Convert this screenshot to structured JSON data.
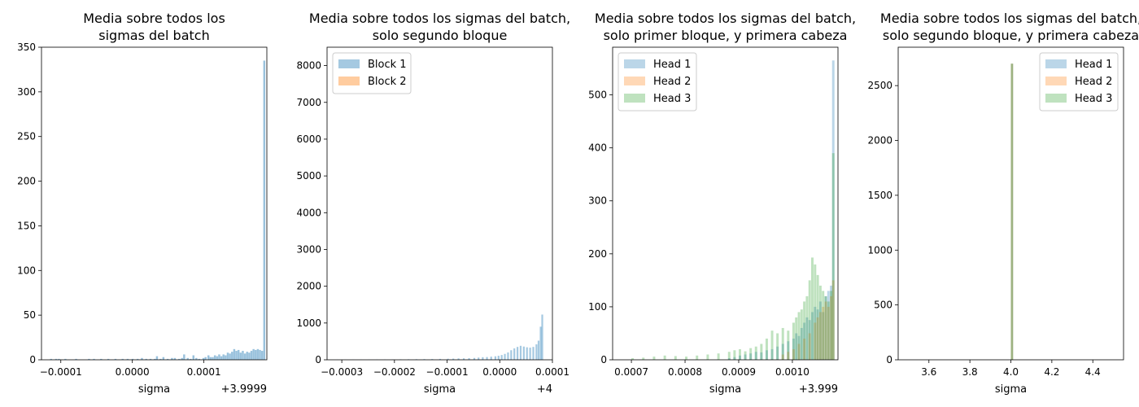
{
  "chart_data": [
    {
      "type": "bar",
      "title_lines": [
        "Media sobre todos los",
        "sigmas del batch"
      ],
      "xlabel": "sigma",
      "ylabel": "",
      "x_offset_text": "+3.9999",
      "xlim": [
        -0.000127,
        0.000188
      ],
      "ylim": [
        0,
        350
      ],
      "xticks": [
        -0.0001,
        0.0,
        0.0001
      ],
      "xtick_labels": [
        "−0.0001",
        "0.0000",
        "0.0001"
      ],
      "yticks": [
        0,
        50,
        100,
        150,
        200,
        250,
        300,
        350
      ],
      "ytick_labels": [
        "0",
        "50",
        "100",
        "150",
        "200",
        "250",
        "300",
        "350"
      ],
      "legend": null,
      "series": [
        {
          "color": "#1f77b4",
          "opacity": 0.45,
          "bins": [
            [
              -0.000115,
              1
            ],
            [
              -0.000108,
              1
            ],
            [
              -0.000104,
              1
            ],
            [
              -9.5e-05,
              1
            ],
            [
              -8e-05,
              1
            ],
            [
              -6.2e-05,
              1
            ],
            [
              -5.5e-05,
              1
            ],
            [
              -4.5e-05,
              1
            ],
            [
              -3.5e-05,
              1
            ],
            [
              -2.5e-05,
              1
            ],
            [
              -1.5e-05,
              1
            ],
            [
              -8e-06,
              1
            ],
            [
              -1e-06,
              1
            ],
            [
              6e-06,
              1
            ],
            [
              1.2e-05,
              2
            ],
            [
              1.8e-05,
              1
            ],
            [
              2.4e-05,
              1
            ],
            [
              3e-05,
              1
            ],
            [
              3.3e-05,
              4
            ],
            [
              3.8e-05,
              1
            ],
            [
              4.2e-05,
              3
            ],
            [
              4.8e-05,
              1
            ],
            [
              5.4e-05,
              2
            ],
            [
              5.8e-05,
              2
            ],
            [
              6.4e-05,
              1
            ],
            [
              6.8e-05,
              2
            ],
            [
              7.1e-05,
              6
            ],
            [
              7.6e-05,
              2
            ],
            [
              8e-05,
              1
            ],
            [
              8.4e-05,
              5
            ],
            [
              8.8e-05,
              2
            ],
            [
              9.2e-05,
              1
            ],
            [
              9.8e-05,
              2
            ],
            [
              0.000101,
              3
            ],
            [
              0.000105,
              5
            ],
            [
              0.000108,
              3
            ],
            [
              0.000111,
              3
            ],
            [
              0.000114,
              5
            ],
            [
              0.000117,
              4
            ],
            [
              0.00012,
              6
            ],
            [
              0.000123,
              4
            ],
            [
              0.000126,
              6
            ],
            [
              0.000129,
              5
            ],
            [
              0.000132,
              8
            ],
            [
              0.000135,
              7
            ],
            [
              0.000138,
              9
            ],
            [
              0.000141,
              12
            ],
            [
              0.000144,
              10
            ],
            [
              0.000147,
              11
            ],
            [
              0.00015,
              8
            ],
            [
              0.000153,
              10
            ],
            [
              0.000156,
              7
            ],
            [
              0.000159,
              9
            ],
            [
              0.000162,
              8
            ],
            [
              0.000165,
              10
            ],
            [
              0.000168,
              12
            ],
            [
              0.000171,
              11
            ],
            [
              0.000174,
              12
            ],
            [
              0.000177,
              11
            ],
            [
              0.00018,
              10
            ],
            [
              0.000183,
              335
            ]
          ],
          "bin_width": 2.8e-06
        }
      ]
    },
    {
      "type": "bar",
      "title_lines": [
        "Media sobre todos los sigmas del batch,",
        "solo segundo bloque"
      ],
      "xlabel": "sigma",
      "ylabel": "",
      "x_offset_text": "+4",
      "xlim": [
        -0.000328,
        0.0001
      ],
      "ylim": [
        0,
        8500
      ],
      "xticks": [
        -0.0003,
        -0.0002,
        -0.0001,
        0.0,
        0.0001
      ],
      "xtick_labels": [
        "−0.0003",
        "−0.0002",
        "−0.0001",
        "0.0000",
        "0.0001"
      ],
      "yticks": [
        0,
        1000,
        2000,
        3000,
        4000,
        5000,
        6000,
        7000,
        8000
      ],
      "ytick_labels": [
        "0",
        "1000",
        "2000",
        "3000",
        "4000",
        "5000",
        "6000",
        "7000",
        "8000"
      ],
      "legend": {
        "placement": "upper left",
        "entries": [
          "Block 1",
          "Block 2"
        ],
        "colors": [
          "#1f77b4",
          "#ff7f0e"
        ],
        "opacities": [
          0.4,
          0.4
        ]
      },
      "series": [
        {
          "name": "Block 1",
          "color": "#1f77b4",
          "opacity": 0.4,
          "bins": [
            [
              -0.00031,
              4
            ],
            [
              -0.000295,
              3
            ],
            [
              -0.00028,
              4
            ],
            [
              -0.000265,
              5
            ],
            [
              -0.00025,
              6
            ],
            [
              -0.000235,
              7
            ],
            [
              -0.00022,
              8
            ],
            [
              -0.000205,
              10
            ],
            [
              -0.00019,
              12
            ],
            [
              -0.000175,
              14
            ],
            [
              -0.00016,
              16
            ],
            [
              -0.000145,
              18
            ],
            [
              -0.00013,
              20
            ],
            [
              -0.000115,
              24
            ],
            [
              -0.0001,
              28
            ],
            [
              -9e-05,
              32
            ],
            [
              -8e-05,
              38
            ],
            [
              -7e-05,
              40
            ],
            [
              -6e-05,
              45
            ],
            [
              -5e-05,
              50
            ],
            [
              -4.2e-05,
              60
            ],
            [
              -3.4e-05,
              70
            ],
            [
              -2.6e-05,
              75
            ],
            [
              -1.8e-05,
              85
            ],
            [
              -1e-05,
              95
            ],
            [
              -4e-06,
              110
            ],
            [
              2e-06,
              130
            ],
            [
              8e-06,
              160
            ],
            [
              1.4e-05,
              200
            ],
            [
              2e-05,
              260
            ],
            [
              2.6e-05,
              310
            ],
            [
              3.2e-05,
              350
            ],
            [
              3.8e-05,
              380
            ],
            [
              4.4e-05,
              360
            ],
            [
              5e-05,
              340
            ],
            [
              5.6e-05,
              330
            ],
            [
              6.2e-05,
              350
            ],
            [
              6.8e-05,
              420
            ],
            [
              7.2e-05,
              520
            ],
            [
              7.6e-05,
              900
            ],
            [
              7.9e-05,
              1230
            ]
          ],
          "bin_width": 3.4e-06
        },
        {
          "name": "Block 2",
          "color": "#ff7f0e",
          "opacity": 0.4,
          "bins": []
        }
      ]
    },
    {
      "type": "bar",
      "title_lines": [
        "Media sobre todos los sigmas del batch,",
        "solo primer bloque, y primera cabeza"
      ],
      "xlabel": "sigma",
      "ylabel": "",
      "x_offset_text": "+3.999",
      "xlim": [
        0.000665,
        0.001085
      ],
      "ylim": [
        0,
        590
      ],
      "xticks": [
        0.0007,
        0.0008,
        0.0009,
        0.001
      ],
      "xtick_labels": [
        "0.0007",
        "0.0008",
        "0.0009",
        "0.0010"
      ],
      "yticks": [
        0,
        100,
        200,
        300,
        400,
        500
      ],
      "ytick_labels": [
        "0",
        "100",
        "200",
        "300",
        "400",
        "500"
      ],
      "legend": {
        "placement": "upper left",
        "entries": [
          "Head 1",
          "Head 2",
          "Head 3"
        ],
        "colors": [
          "#1f77b4",
          "#ff7f0e",
          "#2ca02c"
        ],
        "opacities": [
          0.3,
          0.3,
          0.3
        ]
      },
      "series": [
        {
          "name": "Head 1",
          "color": "#1f77b4",
          "opacity": 0.3,
          "bins": [
            [
              0.00088,
              3
            ],
            [
              0.00089,
              5
            ],
            [
              0.0009,
              8
            ],
            [
              0.00091,
              10
            ],
            [
              0.00092,
              12
            ],
            [
              0.00093,
              15
            ],
            [
              0.00094,
              14
            ],
            [
              0.00095,
              18
            ],
            [
              0.00096,
              20
            ],
            [
              0.00097,
              25
            ],
            [
              0.00098,
              30
            ],
            [
              0.00099,
              35
            ],
            [
              0.001,
              40
            ],
            [
              0.001005,
              50
            ],
            [
              0.00101,
              45
            ],
            [
              0.001015,
              60
            ],
            [
              0.00102,
              70
            ],
            [
              0.001025,
              80
            ],
            [
              0.00103,
              75
            ],
            [
              0.001035,
              90
            ],
            [
              0.00104,
              100
            ],
            [
              0.001045,
              95
            ],
            [
              0.00105,
              110
            ],
            [
              0.001055,
              90
            ],
            [
              0.00106,
              120
            ],
            [
              0.001065,
              130
            ],
            [
              0.00107,
              140
            ],
            [
              0.001074,
              565
            ]
          ],
          "bin_width": 4.5e-06
        },
        {
          "name": "Head 2",
          "color": "#ff7f0e",
          "opacity": 0.3,
          "bins": [
            [
              0.00098,
              10
            ],
            [
              0.00099,
              15
            ],
            [
              0.001,
              20
            ],
            [
              0.00101,
              30
            ],
            [
              0.00102,
              40
            ],
            [
              0.00103,
              50
            ],
            [
              0.00104,
              70
            ],
            [
              0.001045,
              80
            ],
            [
              0.00105,
              90
            ],
            [
              0.001055,
              100
            ],
            [
              0.00106,
              110
            ],
            [
              0.001065,
              100
            ],
            [
              0.00107,
              120
            ],
            [
              0.001074,
              150
            ]
          ],
          "bin_width": 4.5e-06
        },
        {
          "name": "Head 3",
          "color": "#2ca02c",
          "opacity": 0.3,
          "bins": [
            [
              0.0007,
              3
            ],
            [
              0.00072,
              4
            ],
            [
              0.00074,
              6
            ],
            [
              0.00076,
              8
            ],
            [
              0.00078,
              7
            ],
            [
              0.0008,
              6
            ],
            [
              0.00082,
              8
            ],
            [
              0.00084,
              10
            ],
            [
              0.00086,
              12
            ],
            [
              0.00088,
              15
            ],
            [
              0.00089,
              18
            ],
            [
              0.0009,
              20
            ],
            [
              0.00091,
              16
            ],
            [
              0.00092,
              22
            ],
            [
              0.00093,
              25
            ],
            [
              0.00094,
              30
            ],
            [
              0.00095,
              40
            ],
            [
              0.00096,
              55
            ],
            [
              0.00097,
              50
            ],
            [
              0.00098,
              60
            ],
            [
              0.00099,
              55
            ],
            [
              0.001,
              70
            ],
            [
              0.001005,
              80
            ],
            [
              0.00101,
              90
            ],
            [
              0.001015,
              95
            ],
            [
              0.00102,
              110
            ],
            [
              0.001025,
              120
            ],
            [
              0.00103,
              150
            ],
            [
              0.001035,
              193
            ],
            [
              0.00104,
              180
            ],
            [
              0.001045,
              160
            ],
            [
              0.00105,
              140
            ],
            [
              0.001055,
              130
            ],
            [
              0.00106,
              120
            ],
            [
              0.001065,
              110
            ],
            [
              0.00107,
              130
            ],
            [
              0.001074,
              390
            ]
          ],
          "bin_width": 4.5e-06
        }
      ]
    },
    {
      "type": "bar",
      "title_lines": [
        "Media sobre todos los sigmas del batch,",
        "solo segundo bloque, y primera cabeza"
      ],
      "xlabel": "sigma",
      "ylabel": "",
      "x_offset_text": "",
      "xlim": [
        3.45,
        4.55
      ],
      "ylim": [
        0,
        2850
      ],
      "xticks": [
        3.6,
        3.8,
        4.0,
        4.2,
        4.4
      ],
      "xtick_labels": [
        "3.6",
        "3.8",
        "4.0",
        "4.2",
        "4.4"
      ],
      "yticks": [
        0,
        500,
        1000,
        1500,
        2000,
        2500
      ],
      "ytick_labels": [
        "0",
        "500",
        "1000",
        "1500",
        "2000",
        "2500"
      ],
      "legend": {
        "placement": "upper right",
        "entries": [
          "Head 1",
          "Head 2",
          "Head 3"
        ],
        "colors": [
          "#1f77b4",
          "#ff7f0e",
          "#2ca02c"
        ],
        "opacities": [
          0.3,
          0.3,
          0.3
        ]
      },
      "series": [
        {
          "name": "Head 1",
          "color": "#1f77b4",
          "opacity": 0.3,
          "bins": [
            [
              4.0,
              2700
            ]
          ],
          "bin_width": 0.011
        },
        {
          "name": "Head 2",
          "color": "#ff7f0e",
          "opacity": 0.3,
          "bins": [
            [
              4.0,
              2700
            ]
          ],
          "bin_width": 0.011
        },
        {
          "name": "Head 3",
          "color": "#2ca02c",
          "opacity": 0.3,
          "bins": [
            [
              4.0,
              2700
            ]
          ],
          "bin_width": 0.011
        }
      ]
    }
  ]
}
